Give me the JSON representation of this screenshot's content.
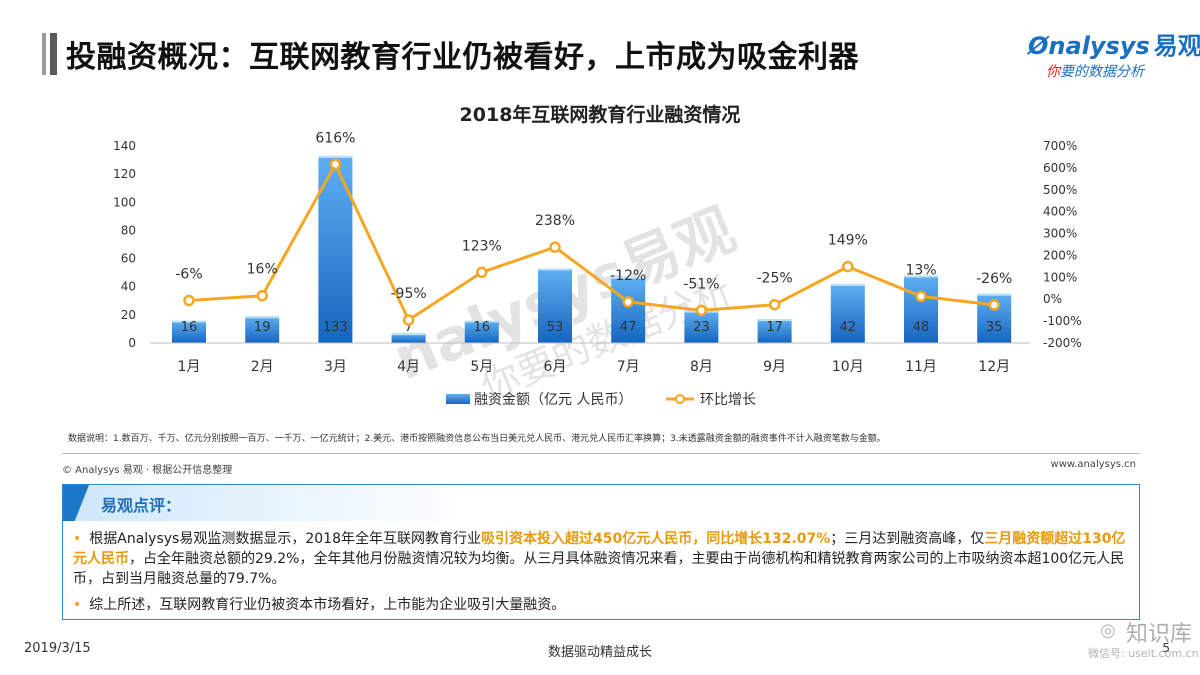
{
  "page": {
    "title": "投融资概况：互联网教育行业仍被看好，上市成为吸金利器",
    "logo_en": "nalysys",
    "logo_cn": "易观",
    "logo_sub_red": "你",
    "logo_sub": "要的数据分析"
  },
  "chart_data": {
    "type": "bar+line",
    "title": "2018年互联网教育行业融资情况",
    "categories": [
      "1月",
      "2月",
      "3月",
      "4月",
      "5月",
      "6月",
      "7月",
      "8月",
      "9月",
      "10月",
      "11月",
      "12月"
    ],
    "series": [
      {
        "name": "融资金额（亿元  人民币）",
        "type": "bar",
        "axis": "left",
        "values": [
          16,
          19,
          133,
          7,
          16,
          53,
          47,
          23,
          17,
          42,
          48,
          35
        ],
        "labels": [
          "16",
          "19",
          "133",
          "7",
          "16",
          "53",
          "47",
          "23",
          "17",
          "42",
          "48",
          "35"
        ]
      },
      {
        "name": "环比增长",
        "type": "line",
        "axis": "right",
        "values": [
          -6,
          16,
          616,
          -95,
          123,
          238,
          -12,
          -51,
          -25,
          149,
          13,
          -26
        ],
        "labels": [
          "-6%",
          "16%",
          "616%",
          "-95%",
          "123%",
          "238%",
          "-12%",
          "-51%",
          "-25%",
          "149%",
          "13%",
          "-26%"
        ]
      }
    ],
    "left_axis": {
      "min": 0,
      "max": 140,
      "ticks": [
        "0",
        "20",
        "40",
        "60",
        "80",
        "100",
        "120",
        "140"
      ]
    },
    "right_axis": {
      "min": -200,
      "max": 700,
      "ticks": [
        "-200%",
        "-100%",
        "0%",
        "100%",
        "200%",
        "300%",
        "400%",
        "500%",
        "600%",
        "700%"
      ]
    },
    "colors": {
      "bar_top": "#5fb0f2",
      "bar_bottom": "#1565c0",
      "line": "#f5a623"
    }
  },
  "notes": {
    "data_note": "数据说明：1.数百万、千万、亿元分别按照一百万、一千万、一亿元统计；2.美元、港币按照融资信息公布当日美元兑人民币、港元兑人民币汇率换算；3.未透露融资金额的融资事件不计入融资笔数与金额。",
    "source": "© Analysys 易观 · 根据公开信息整理",
    "website": "www.analysys.cn"
  },
  "comment": {
    "title": "易观点评：",
    "p1_a": "根据Analysys易观监测数据显示，2018年全年互联网教育行业",
    "p1_hl1": "吸引资本投入超过450亿元人民币，同比增长132.07%",
    "p1_b": "；三月达到融资高峰，仅",
    "p1_hl2": "三月融资额超过130亿元人民币",
    "p1_c": "，占全年融资总额的29.2%，全年其他月份融资情况较为均衡。从三月具体融资情况来看，主要由于尚德机构和精锐教育两家公司的上市吸纳资本超100亿元人民币，占到当月融资总量的79.7%。",
    "p2": "综上所述，互联网教育行业仍被资本市场看好，上市能为企业吸引大量融资。"
  },
  "footer": {
    "date": "2019/3/15",
    "center": "数据驱动精益成长",
    "page": "5"
  },
  "watermark": {
    "chart_wm_en": "nalysys",
    "chart_wm_cn": "易观",
    "chart_wm_sub": "你要的数据分析",
    "corner_1": "知识库",
    "corner_2": "微信号: useit.com.cn"
  }
}
